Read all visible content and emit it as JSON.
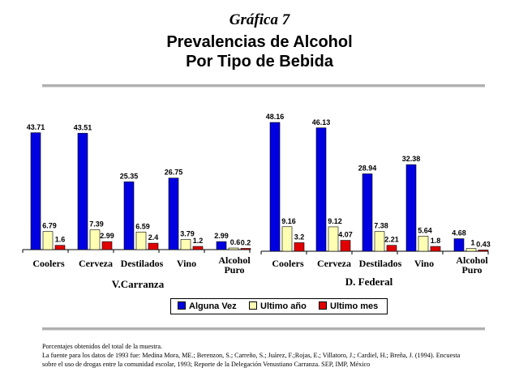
{
  "header": {
    "figure_label": "Gráfica 7",
    "title_line1": "Prevalencias de Alcohol",
    "title_line2": "Por Tipo de Bebida"
  },
  "colors": {
    "alguna_vez": "#0000e0",
    "ultimo_ano": "#ffffb4",
    "ultimo_mes": "#e00000"
  },
  "legend": [
    {
      "label": "Alguna Vez",
      "color": "#0000e0"
    },
    {
      "label": "Ultimo año",
      "color": "#ffffb4"
    },
    {
      "label": "Ultimo mes",
      "color": "#e00000"
    }
  ],
  "chart_data": [
    {
      "type": "bar",
      "group_label": "V.Carranza",
      "categories": [
        "Coolers",
        "Cerveza",
        "Destilados",
        "Vino",
        "Alcohol Puro"
      ],
      "series": [
        {
          "name": "Alguna Vez",
          "values": [
            43.71,
            43.51,
            25.35,
            26.75,
            2.99
          ],
          "labels": [
            "43.71",
            "43.51",
            "25.35",
            "26.75",
            "2.99"
          ]
        },
        {
          "name": "Ultimo año",
          "values": [
            6.79,
            7.39,
            6.59,
            3.79,
            0.6
          ],
          "labels": [
            "6.79",
            "7.39",
            "6.59",
            "3.79",
            "0.6"
          ]
        },
        {
          "name": "Ultimo mes",
          "values": [
            1.6,
            2.99,
            2.4,
            1.2,
            0.2
          ],
          "labels": [
            "1.6",
            "2.99",
            "2.4",
            "1.2",
            "0.2"
          ]
        }
      ],
      "ylim": [
        0,
        50
      ],
      "grid": false
    },
    {
      "type": "bar",
      "group_label": "D. Federal",
      "categories": [
        "Coolers",
        "Cerveza",
        "Destilados",
        "Vino",
        "Alcohol Puro"
      ],
      "series": [
        {
          "name": "Alguna Vez",
          "values": [
            48.16,
            46.13,
            28.94,
            32.38,
            4.68
          ],
          "labels": [
            "48.16",
            "46.13",
            "28.94",
            "32.38",
            "4.68"
          ]
        },
        {
          "name": "Ultimo año",
          "values": [
            9.16,
            9.12,
            7.38,
            5.64,
            1
          ],
          "labels": [
            "9.16",
            "9.12",
            "7.38",
            "5.64",
            "1"
          ]
        },
        {
          "name": "Ultimo mes",
          "values": [
            3.2,
            4.07,
            2.21,
            1.8,
            0.43
          ],
          "labels": [
            "3.2",
            "4.07",
            "2.21",
            "1.8",
            "0.43"
          ]
        }
      ],
      "ylim": [
        0,
        50
      ],
      "grid": false
    }
  ],
  "notes": {
    "line1": "Porcentajes obtenidos del total de la muestra.",
    "line2": "La fuente para los datos de 1993 fue: Medina Mora, ME.; Berenzon, S.; Carreño, S.; Juárez, F.;Rojas, E.; Villatoro, J.; Cardiel, H.; Breña, J. (1994). Encuesta",
    "line3": "sobre el uso de drogas entre la comunidad escolar, 1993; Reporte de la Delegación Venustiano Carranza. SEP, IMP, México"
  }
}
